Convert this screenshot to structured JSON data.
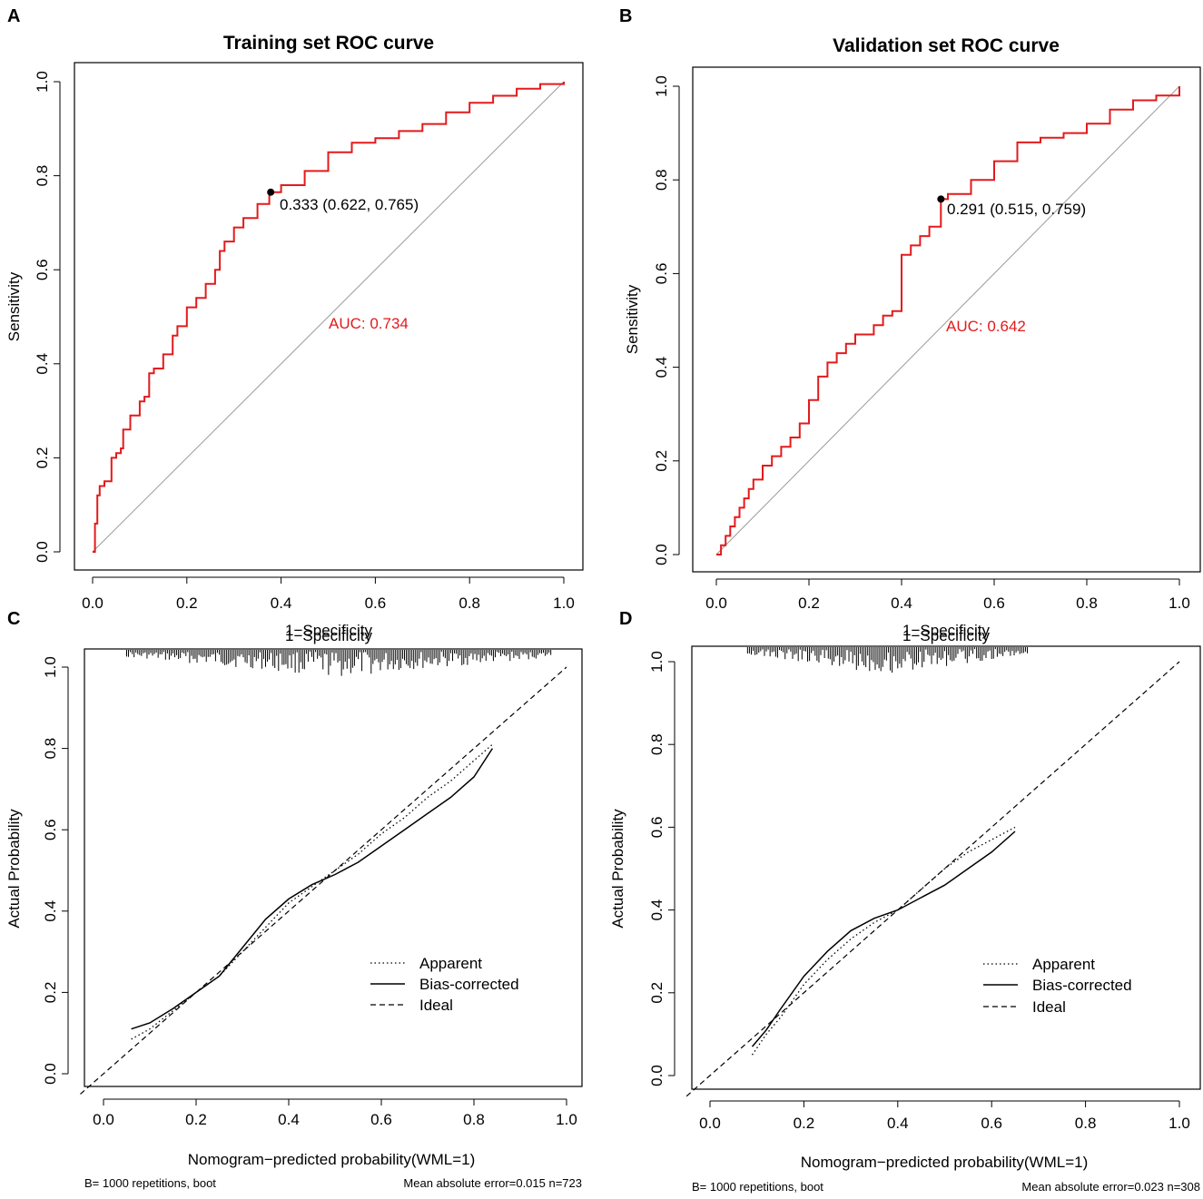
{
  "chart_data": [
    {
      "panel": "A",
      "type": "line",
      "title": "Training set ROC curve",
      "xlabel": "1−Specificity",
      "ylabel": "Sensitivity",
      "xlim": [
        0,
        1
      ],
      "ylim": [
        0,
        1
      ],
      "xticks": [
        "0.0",
        "0.2",
        "0.4",
        "0.6",
        "0.8",
        "1.0"
      ],
      "yticks": [
        "0.0",
        "0.2",
        "0.4",
        "0.6",
        "0.8",
        "1.0"
      ],
      "series": [
        {
          "name": "ROC",
          "color": "#e31a1c",
          "x": [
            0,
            0.005,
            0.01,
            0.015,
            0.025,
            0.04,
            0.05,
            0.06,
            0.065,
            0.08,
            0.1,
            0.11,
            0.12,
            0.13,
            0.15,
            0.17,
            0.18,
            0.2,
            0.22,
            0.24,
            0.26,
            0.27,
            0.28,
            0.3,
            0.32,
            0.35,
            0.375,
            0.4,
            0.45,
            0.5,
            0.55,
            0.6,
            0.65,
            0.7,
            0.75,
            0.8,
            0.85,
            0.9,
            0.95,
            1.0
          ],
          "y": [
            0,
            0.06,
            0.12,
            0.14,
            0.15,
            0.2,
            0.21,
            0.22,
            0.26,
            0.29,
            0.32,
            0.33,
            0.38,
            0.39,
            0.42,
            0.46,
            0.48,
            0.52,
            0.54,
            0.57,
            0.6,
            0.64,
            0.66,
            0.69,
            0.71,
            0.74,
            0.765,
            0.78,
            0.81,
            0.85,
            0.87,
            0.88,
            0.895,
            0.91,
            0.935,
            0.955,
            0.97,
            0.985,
            0.995,
            1.0
          ]
        }
      ],
      "reference_line": "diagonal",
      "cutoff_point": {
        "x": 0.378,
        "y": 0.765,
        "label": "0.333 (0.622, 0.765)"
      },
      "auc_label": "AUC: 0.734",
      "auc_color": "#e31a1c"
    },
    {
      "panel": "B",
      "type": "line",
      "title": "Validation set ROC curve",
      "xlabel": "1−Specificity",
      "ylabel": "Sensitivity",
      "xlim": [
        0,
        1
      ],
      "ylim": [
        0,
        1
      ],
      "xticks": [
        "0.0",
        "0.2",
        "0.4",
        "0.6",
        "0.8",
        "1.0"
      ],
      "yticks": [
        "0.0",
        "0.2",
        "0.4",
        "0.6",
        "0.8",
        "1.0"
      ],
      "series": [
        {
          "name": "ROC",
          "color": "#e31a1c",
          "x": [
            0,
            0.01,
            0.02,
            0.03,
            0.04,
            0.05,
            0.06,
            0.07,
            0.08,
            0.1,
            0.12,
            0.14,
            0.16,
            0.18,
            0.2,
            0.22,
            0.24,
            0.26,
            0.28,
            0.3,
            0.34,
            0.36,
            0.38,
            0.4,
            0.42,
            0.44,
            0.46,
            0.485,
            0.5,
            0.55,
            0.6,
            0.65,
            0.7,
            0.75,
            0.8,
            0.85,
            0.9,
            0.95,
            1.0
          ],
          "y": [
            0,
            0.02,
            0.04,
            0.06,
            0.08,
            0.1,
            0.12,
            0.14,
            0.16,
            0.19,
            0.21,
            0.23,
            0.25,
            0.28,
            0.33,
            0.38,
            0.41,
            0.43,
            0.45,
            0.47,
            0.49,
            0.51,
            0.52,
            0.64,
            0.66,
            0.68,
            0.7,
            0.759,
            0.77,
            0.8,
            0.84,
            0.88,
            0.89,
            0.9,
            0.92,
            0.95,
            0.97,
            0.98,
            1.0
          ]
        }
      ],
      "reference_line": "diagonal",
      "cutoff_point": {
        "x": 0.485,
        "y": 0.759,
        "label": "0.291 (0.515, 0.759)"
      },
      "auc_label": "AUC: 0.642",
      "auc_color": "#e31a1c"
    },
    {
      "panel": "C",
      "type": "line",
      "title": "",
      "xlabel": "Nomogram−predicted probability(WML=1)",
      "ylabel": "Actual Probability",
      "xlim": [
        0,
        1
      ],
      "ylim": [
        0,
        1
      ],
      "xticks": [
        "0.0",
        "0.2",
        "0.4",
        "0.6",
        "0.8",
        "1.0"
      ],
      "yticks": [
        "0.0",
        "0.2",
        "0.4",
        "0.6",
        "0.8",
        "1.0"
      ],
      "series": [
        {
          "name": "Apparent",
          "style": "dotted",
          "x": [
            0.06,
            0.1,
            0.15,
            0.2,
            0.25,
            0.3,
            0.35,
            0.4,
            0.45,
            0.5,
            0.55,
            0.6,
            0.65,
            0.7,
            0.75,
            0.8,
            0.84
          ],
          "y": [
            0.085,
            0.11,
            0.155,
            0.2,
            0.24,
            0.3,
            0.36,
            0.42,
            0.46,
            0.5,
            0.54,
            0.59,
            0.63,
            0.68,
            0.72,
            0.77,
            0.81
          ]
        },
        {
          "name": "Bias-corrected",
          "style": "solid",
          "x": [
            0.06,
            0.1,
            0.15,
            0.2,
            0.25,
            0.3,
            0.35,
            0.4,
            0.45,
            0.5,
            0.55,
            0.6,
            0.65,
            0.7,
            0.75,
            0.8,
            0.84
          ],
          "y": [
            0.11,
            0.125,
            0.16,
            0.2,
            0.24,
            0.31,
            0.38,
            0.43,
            0.465,
            0.49,
            0.52,
            0.56,
            0.6,
            0.64,
            0.68,
            0.73,
            0.8
          ]
        },
        {
          "name": "Ideal",
          "style": "dashed",
          "x": [
            -0.05,
            1
          ],
          "y": [
            -0.05,
            1
          ]
        }
      ],
      "rug_range": [
        0.05,
        0.97
      ],
      "footnote_left": "B= 1000 repetitions, boot",
      "footnote_right": "Mean absolute error=0.015 n=723"
    },
    {
      "panel": "D",
      "type": "line",
      "title": "",
      "xlabel": "Nomogram−predicted probability(WML=1)",
      "ylabel": "Actual Probability",
      "xlim": [
        0,
        1
      ],
      "ylim": [
        0,
        1
      ],
      "xticks": [
        "0.0",
        "0.2",
        "0.4",
        "0.6",
        "0.8",
        "1.0"
      ],
      "yticks": [
        "0.0",
        "0.2",
        "0.4",
        "0.6",
        "0.8",
        "1.0"
      ],
      "series": [
        {
          "name": "Apparent",
          "style": "dotted",
          "x": [
            0.09,
            0.12,
            0.15,
            0.2,
            0.25,
            0.3,
            0.35,
            0.4,
            0.45,
            0.5,
            0.55,
            0.6,
            0.65
          ],
          "y": [
            0.05,
            0.1,
            0.14,
            0.22,
            0.28,
            0.33,
            0.37,
            0.4,
            0.45,
            0.5,
            0.54,
            0.57,
            0.6
          ]
        },
        {
          "name": "Bias-corrected",
          "style": "solid",
          "x": [
            0.09,
            0.12,
            0.15,
            0.2,
            0.25,
            0.3,
            0.35,
            0.4,
            0.45,
            0.5,
            0.55,
            0.6,
            0.65
          ],
          "y": [
            0.07,
            0.11,
            0.16,
            0.24,
            0.3,
            0.35,
            0.38,
            0.4,
            0.43,
            0.46,
            0.5,
            0.54,
            0.59
          ]
        },
        {
          "name": "Ideal",
          "style": "dashed",
          "x": [
            -0.05,
            1
          ],
          "y": [
            -0.05,
            1
          ]
        }
      ],
      "rug_range": [
        0.08,
        0.68
      ],
      "footnote_left": "B= 1000 repetitions, boot",
      "footnote_right": "Mean absolute error=0.023 n=308"
    }
  ],
  "panel_labels": [
    "A",
    "B",
    "C",
    "D"
  ]
}
